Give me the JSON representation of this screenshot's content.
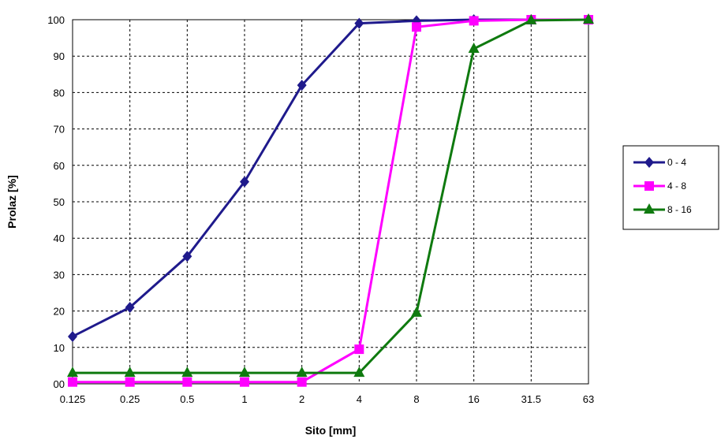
{
  "chart_data": {
    "type": "line",
    "title": "",
    "xlabel": "Sito [mm]",
    "ylabel": "Prolaz [%]",
    "categories": [
      "0.125",
      "0.25",
      "0.5",
      "1",
      "2",
      "4",
      "8",
      "16",
      "31.5",
      "63"
    ],
    "y_tick_labels": [
      "00",
      "10",
      "20",
      "30",
      "40",
      "50",
      "60",
      "70",
      "80",
      "90",
      "100"
    ],
    "ylim": [
      0,
      100
    ],
    "grid": true,
    "legend_position": "right",
    "series": [
      {
        "name": "0 - 4",
        "color": "#1F1A8C",
        "marker": "diamond",
        "values": [
          13,
          21,
          35,
          55.5,
          82,
          99,
          99.7,
          100,
          100,
          100
        ]
      },
      {
        "name": "4 - 8",
        "color": "#FF00FF",
        "marker": "square",
        "values": [
          0.5,
          0.5,
          0.5,
          0.5,
          0.5,
          9.5,
          98,
          99.7,
          100,
          100
        ]
      },
      {
        "name": "8 - 16",
        "color": "#0F7A0F",
        "marker": "triangle",
        "values": [
          3,
          3,
          3,
          3,
          3,
          3,
          19.5,
          92,
          99.8,
          100
        ]
      }
    ]
  }
}
